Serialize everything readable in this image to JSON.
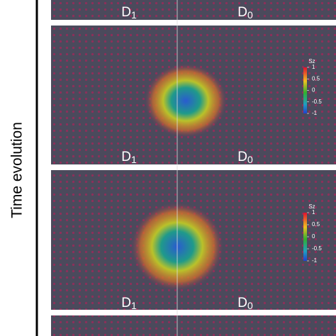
{
  "axis_label": "Time evolution",
  "panels": [
    {
      "left_label": {
        "letter": "D",
        "subscript": "1"
      },
      "right_label": {
        "letter": "D",
        "subscript": "0"
      }
    },
    {
      "left_label": {
        "letter": "D",
        "subscript": "1"
      },
      "right_label": {
        "letter": "D",
        "subscript": "0"
      },
      "colorbar": {
        "label": "Sz",
        "range": [
          -1,
          1
        ],
        "ticks": [
          1,
          0.5,
          0,
          -0.5,
          -1
        ]
      }
    },
    {
      "left_label": {
        "letter": "D",
        "subscript": "1"
      },
      "right_label": {
        "letter": "D",
        "subscript": "0"
      },
      "colorbar": {
        "label": "Sz",
        "range": [
          -1,
          1
        ],
        "ticks": [
          1,
          0.5,
          0,
          -0.5,
          -1
        ]
      }
    }
  ]
}
